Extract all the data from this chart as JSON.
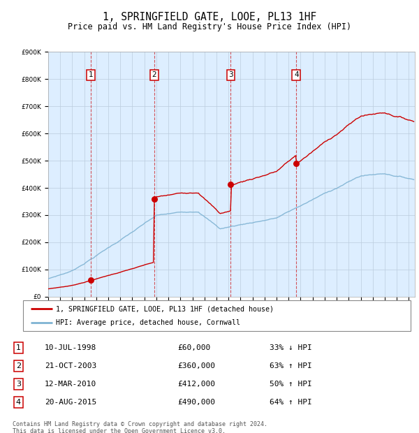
{
  "title": "1, SPRINGFIELD GATE, LOOE, PL13 1HF",
  "subtitle": "Price paid vs. HM Land Registry's House Price Index (HPI)",
  "footer": "Contains HM Land Registry data © Crown copyright and database right 2024.\nThis data is licensed under the Open Government Licence v3.0.",
  "legend_line1": "1, SPRINGFIELD GATE, LOOE, PL13 1HF (detached house)",
  "legend_line2": "HPI: Average price, detached house, Cornwall",
  "sale_color": "#cc0000",
  "hpi_color": "#7fb3d3",
  "background_plot": "#ddeeff",
  "background_fig": "#ffffff",
  "grid_color": "#bbccdd",
  "ylim": [
    0,
    900000
  ],
  "yticks": [
    0,
    100000,
    200000,
    300000,
    400000,
    500000,
    600000,
    700000,
    800000,
    900000
  ],
  "sales": [
    {
      "date_num": 1998.53,
      "price": 60000,
      "label": "1",
      "date_str": "10-JUL-1998",
      "price_str": "£60,000",
      "note": "33% ↓ HPI"
    },
    {
      "date_num": 2003.81,
      "price": 360000,
      "label": "2",
      "date_str": "21-OCT-2003",
      "price_str": "£360,000",
      "note": "63% ↑ HPI"
    },
    {
      "date_num": 2010.19,
      "price": 412000,
      "label": "3",
      "date_str": "12-MAR-2010",
      "price_str": "£412,000",
      "note": "50% ↑ HPI"
    },
    {
      "date_num": 2015.64,
      "price": 490000,
      "label": "4",
      "date_str": "20-AUG-2015",
      "price_str": "£490,000",
      "note": "64% ↑ HPI"
    }
  ],
  "xmin": 1995.0,
  "xmax": 2025.5
}
